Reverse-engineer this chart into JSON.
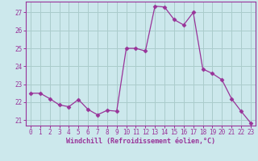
{
  "x": [
    0,
    1,
    2,
    3,
    4,
    5,
    6,
    7,
    8,
    9,
    10,
    11,
    12,
    13,
    14,
    15,
    16,
    17,
    18,
    19,
    20,
    21,
    22,
    23
  ],
  "y": [
    22.5,
    22.5,
    22.2,
    21.85,
    21.75,
    22.15,
    21.6,
    21.3,
    21.55,
    21.5,
    25.0,
    25.0,
    24.85,
    27.35,
    27.3,
    26.6,
    26.3,
    27.0,
    23.85,
    23.6,
    23.25,
    22.2,
    21.5,
    20.85
  ],
  "line_color": "#993399",
  "marker": "D",
  "marker_size": 2.5,
  "bg_color": "#cce8ec",
  "grid_color": "#aacccc",
  "xlabel": "Windchill (Refroidissement éolien,°C)",
  "xlabel_color": "#993399",
  "tick_color": "#993399",
  "spine_color": "#993399",
  "ylim": [
    20.7,
    27.6
  ],
  "xlim": [
    -0.5,
    23.5
  ],
  "yticks": [
    21,
    22,
    23,
    24,
    25,
    26,
    27
  ],
  "xticks": [
    0,
    1,
    2,
    3,
    4,
    5,
    6,
    7,
    8,
    9,
    10,
    11,
    12,
    13,
    14,
    15,
    16,
    17,
    18,
    19,
    20,
    21,
    22,
    23
  ],
  "tick_fontsize": 5.5,
  "xlabel_fontsize": 6.0
}
